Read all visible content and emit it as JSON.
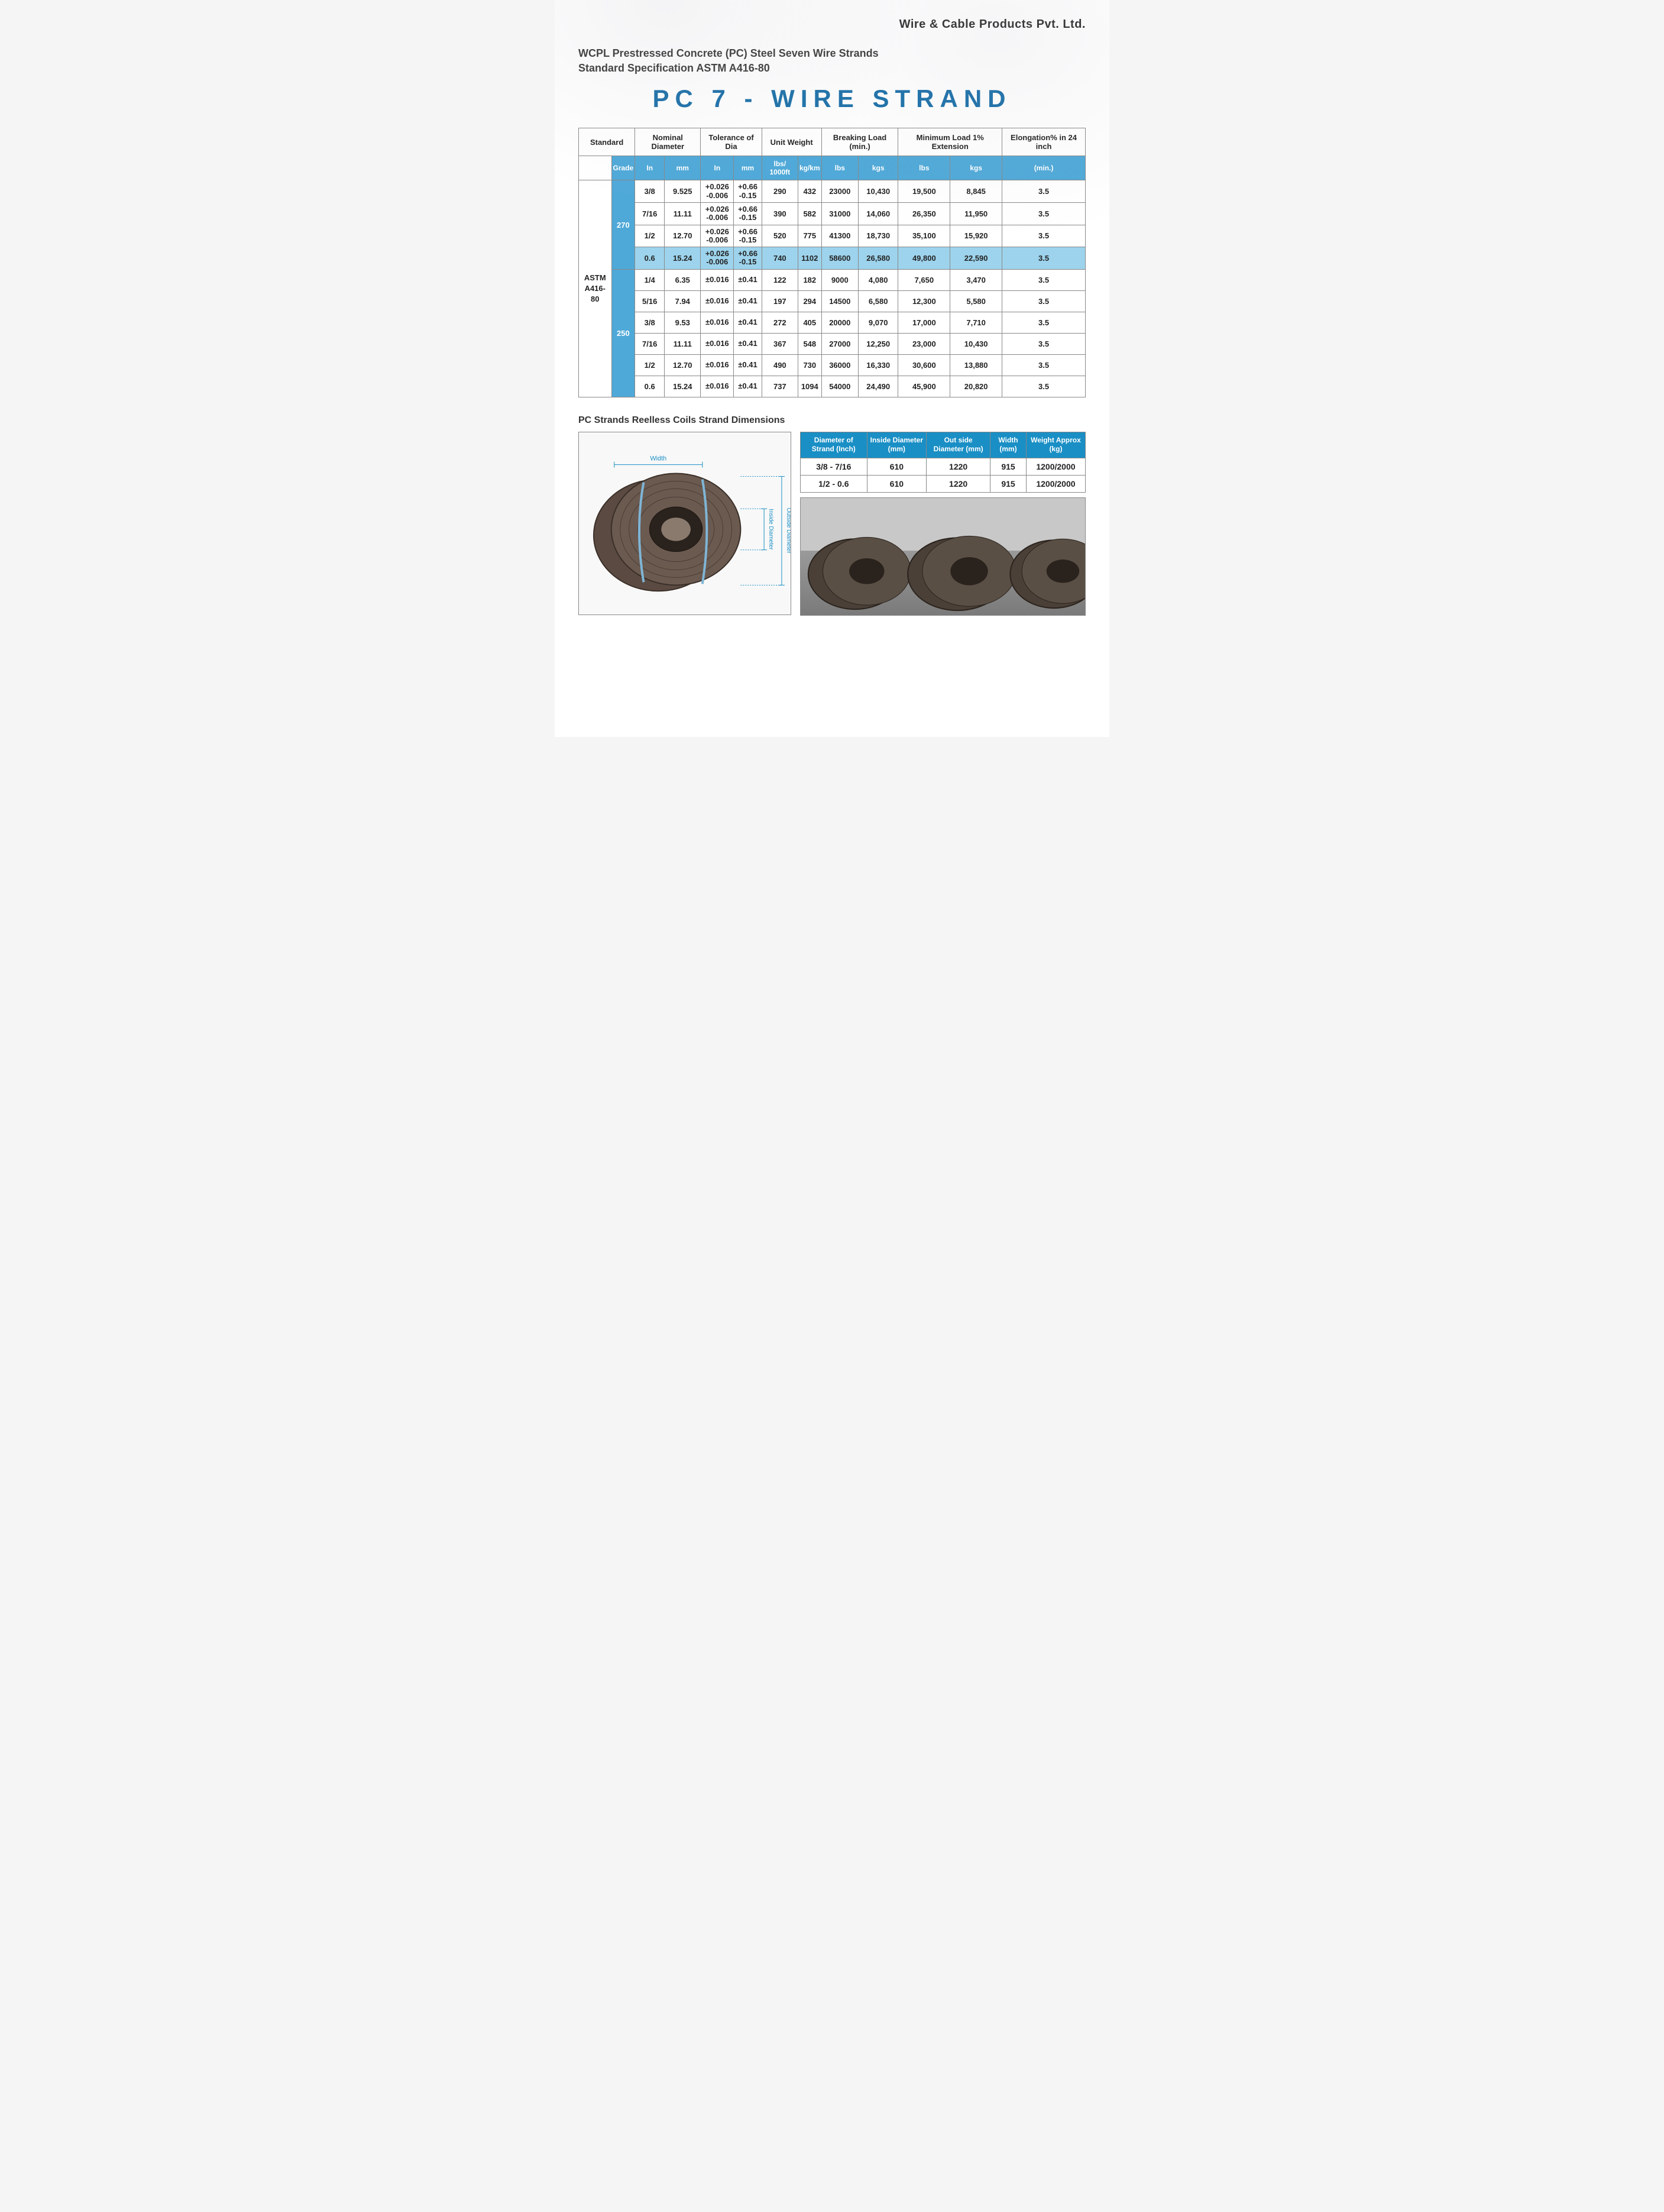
{
  "company_name": "Wire & Cable Products Pvt. Ltd.",
  "subtitle_line1": "WCPL Prestressed Concrete (PC) Steel Seven Wire Strands",
  "subtitle_line2": "Standard Specification ASTM A416-80",
  "main_title": "PC 7 - WIRE STRAND",
  "colors": {
    "title": "#1a6fa8",
    "header_bg": "#4fa9d8",
    "highlight_bg": "#9dd3ec",
    "dim_header_bg": "#1a8fc5",
    "border": "#888888"
  },
  "spec_headers_top": [
    "Standard",
    "Nominal Diameter",
    "Tolerance of Dia",
    "Unit Weight",
    "Breaking Load (min.)",
    "Minimum Load 1% Extension",
    "Elongation% in 24 inch"
  ],
  "spec_headers_sub": [
    "Grade",
    "In",
    "mm",
    "In",
    "mm",
    "lbs/ 1000ft",
    "kg/km",
    "lbs",
    "kgs",
    "lbs",
    "kgs",
    "(min.)"
  ],
  "standard_label": "ASTM A416-80",
  "grades": [
    "270",
    "250"
  ],
  "rows_270": [
    {
      "in": "3/8",
      "mm": "9.525",
      "tol_in": "+0.026\n-0.006",
      "tol_mm": "+0.66\n-0.15",
      "lbs1000": "290",
      "kgkm": "432",
      "br_lbs": "23000",
      "br_kgs": "10,430",
      "ml_lbs": "19,500",
      "ml_kgs": "8,845",
      "el": "3.5",
      "hl": false
    },
    {
      "in": "7/16",
      "mm": "11.11",
      "tol_in": "+0.026\n-0.006",
      "tol_mm": "+0.66\n-0.15",
      "lbs1000": "390",
      "kgkm": "582",
      "br_lbs": "31000",
      "br_kgs": "14,060",
      "ml_lbs": "26,350",
      "ml_kgs": "11,950",
      "el": "3.5",
      "hl": false
    },
    {
      "in": "1/2",
      "mm": "12.70",
      "tol_in": "+0.026\n-0.006",
      "tol_mm": "+0.66\n-0.15",
      "lbs1000": "520",
      "kgkm": "775",
      "br_lbs": "41300",
      "br_kgs": "18,730",
      "ml_lbs": "35,100",
      "ml_kgs": "15,920",
      "el": "3.5",
      "hl": false
    },
    {
      "in": "0.6",
      "mm": "15.24",
      "tol_in": "+0.026\n-0.006",
      "tol_mm": "+0.66\n-0.15",
      "lbs1000": "740",
      "kgkm": "1102",
      "br_lbs": "58600",
      "br_kgs": "26,580",
      "ml_lbs": "49,800",
      "ml_kgs": "22,590",
      "el": "3.5",
      "hl": true
    }
  ],
  "rows_250": [
    {
      "in": "1/4",
      "mm": "6.35",
      "tol_in": "±0.016",
      "tol_mm": "±0.41",
      "lbs1000": "122",
      "kgkm": "182",
      "br_lbs": "9000",
      "br_kgs": "4,080",
      "ml_lbs": "7,650",
      "ml_kgs": "3,470",
      "el": "3.5",
      "hl": false
    },
    {
      "in": "5/16",
      "mm": "7.94",
      "tol_in": "±0.016",
      "tol_mm": "±0.41",
      "lbs1000": "197",
      "kgkm": "294",
      "br_lbs": "14500",
      "br_kgs": "6,580",
      "ml_lbs": "12,300",
      "ml_kgs": "5,580",
      "el": "3.5",
      "hl": false
    },
    {
      "in": "3/8",
      "mm": "9.53",
      "tol_in": "±0.016",
      "tol_mm": "±0.41",
      "lbs1000": "272",
      "kgkm": "405",
      "br_lbs": "20000",
      "br_kgs": "9,070",
      "ml_lbs": "17,000",
      "ml_kgs": "7,710",
      "el": "3.5",
      "hl": false
    },
    {
      "in": "7/16",
      "mm": "11.11",
      "tol_in": "±0.016",
      "tol_mm": "±0.41",
      "lbs1000": "367",
      "kgkm": "548",
      "br_lbs": "27000",
      "br_kgs": "12,250",
      "ml_lbs": "23,000",
      "ml_kgs": "10,430",
      "el": "3.5",
      "hl": false
    },
    {
      "in": "1/2",
      "mm": "12.70",
      "tol_in": "±0.016",
      "tol_mm": "±0.41",
      "lbs1000": "490",
      "kgkm": "730",
      "br_lbs": "36000",
      "br_kgs": "16,330",
      "ml_lbs": "30,600",
      "ml_kgs": "13,880",
      "el": "3.5",
      "hl": false
    },
    {
      "in": "0.6",
      "mm": "15.24",
      "tol_in": "±0.016",
      "tol_mm": "±0.41",
      "lbs1000": "737",
      "kgkm": "1094",
      "br_lbs": "54000",
      "br_kgs": "24,490",
      "ml_lbs": "45,900",
      "ml_kgs": "20,820",
      "el": "3.5",
      "hl": false
    }
  ],
  "section2_title": "PC Strands Reelless Coils Strand Dimensions",
  "diagram_labels": {
    "width": "Width",
    "inside": "Inside Diameter",
    "outside": "Outside Diameter"
  },
  "dim_headers": [
    "Diameter of Strand (Inch)",
    "Inside Diameter (mm)",
    "Out side Diameter (mm)",
    "Width (mm)",
    "Weight Approx (kg)"
  ],
  "dim_rows": [
    [
      "3/8 - 7/16",
      "610",
      "1220",
      "915",
      "1200/2000"
    ],
    [
      "1/2 - 0.6",
      "610",
      "1220",
      "915",
      "1200/2000"
    ]
  ]
}
